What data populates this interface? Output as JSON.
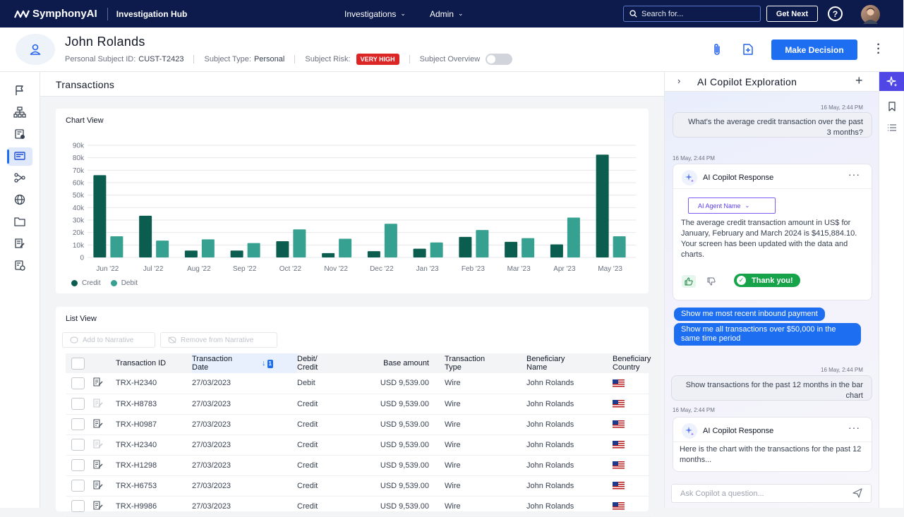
{
  "topbar": {
    "brand": "SymphonyAI",
    "product": "Investigation Hub",
    "menu": [
      {
        "label": "Investigations"
      },
      {
        "label": "Admin"
      }
    ],
    "search_placeholder": "Search for...",
    "get_next": "Get Next",
    "help": "?"
  },
  "subject": {
    "name": "John Rolands",
    "id_label": "Personal Subject ID:",
    "id_value": "CUST-T2423",
    "type_label": "Subject Type:",
    "type_value": "Personal",
    "risk_label": "Subject Risk:",
    "risk_value": "VERY HIGH",
    "overview_label": "Subject Overview",
    "overview_on": false,
    "make_decision": "Make Decision"
  },
  "main": {
    "title": "Transactions",
    "chart_view_title": "Chart View",
    "list_view_title": "List View",
    "add_narrative": "Add to Narrative",
    "remove_narrative": "Remove from Narrative",
    "sort_badge": "1",
    "columns": [
      {
        "label": "Transaction ID"
      },
      {
        "label": "Transaction Date"
      },
      {
        "label": "Debit/ Credit"
      },
      {
        "label": "Base amount"
      },
      {
        "label": "Transaction Type"
      },
      {
        "label": "Beneficiary Name"
      },
      {
        "label": "Beneficiary Country"
      }
    ],
    "rows": [
      {
        "id": "TRX-H2340",
        "date": "27/03/2023",
        "dc": "Debit",
        "amount": "USD 9,539.00",
        "type": "Wire",
        "beneficiary": "John Rolands",
        "note_active": true
      },
      {
        "id": "TRX-H8783",
        "date": "27/03/2023",
        "dc": "Credit",
        "amount": "USD 9,539.00",
        "type": "Wire",
        "beneficiary": "John Rolands",
        "note_active": false
      },
      {
        "id": "TRX-H0987",
        "date": "27/03/2023",
        "dc": "Credit",
        "amount": "USD 9,539.00",
        "type": "Wire",
        "beneficiary": "John Rolands",
        "note_active": true
      },
      {
        "id": "TRX-H2340",
        "date": "27/03/2023",
        "dc": "Credit",
        "amount": "USD 9,539.00",
        "type": "Wire",
        "beneficiary": "John Rolands",
        "note_active": false
      },
      {
        "id": "TRX-H1298",
        "date": "27/03/2023",
        "dc": "Credit",
        "amount": "USD 9,539.00",
        "type": "Wire",
        "beneficiary": "John Rolands",
        "note_active": true
      },
      {
        "id": "TRX-H6753",
        "date": "27/03/2023",
        "dc": "Credit",
        "amount": "USD 9,539.00",
        "type": "Wire",
        "beneficiary": "John Rolands",
        "note_active": true
      },
      {
        "id": "TRX-H9986",
        "date": "27/03/2023",
        "dc": "Credit",
        "amount": "USD 9,539.00",
        "type": "Wire",
        "beneficiary": "John Rolands",
        "note_active": true
      }
    ]
  },
  "chart_data": {
    "type": "bar",
    "categories": [
      "Jun '22",
      "Jul '22",
      "Aug '22",
      "Sep '22",
      "Oct '22",
      "Nov '22",
      "Dec '22",
      "Jan '23",
      "Feb '23",
      "Mar '23",
      "Apr '23",
      "May '23"
    ],
    "series": [
      {
        "name": "Credit",
        "color": "#0b5e4f",
        "values": [
          66000,
          33500,
          5500,
          5500,
          13000,
          3500,
          5000,
          7000,
          16500,
          12500,
          10500,
          82500
        ]
      },
      {
        "name": "Debit",
        "color": "#36a190",
        "values": [
          17000,
          13500,
          14500,
          11500,
          22500,
          15000,
          27000,
          12000,
          22000,
          15500,
          32000,
          17000
        ]
      }
    ],
    "ylim": [
      0,
      90000
    ],
    "yticks": [
      "0",
      "10k",
      "20k",
      "30k",
      "40k",
      "50k",
      "60k",
      "70k",
      "80k",
      "90k"
    ],
    "grid": true,
    "legend_position": "bottom-left"
  },
  "copilot": {
    "title": "AI Copilot Exploration",
    "messages": {
      "q1_time": "16 May, 2:44 PM",
      "q1": "What's the average credit transaction over the past 3 months?",
      "r1_time": "16 May, 2:44 PM",
      "r1_title": "AI Copilot Response",
      "r1_agent": "AI Agent Name",
      "r1_text": "The average credit transaction amount in US$ for January, February and March 2024 is $415,884.10. Your screen has been updated with the data and charts.",
      "thanks": "Thank you!",
      "s1": "Show me most recent inbound payment",
      "s2": "Show me all transactions over $50,000 in the same time period",
      "q2_time": "16 May, 2:44 PM",
      "q2": "Show transactions for the past 12 months in the bar chart",
      "r2_time": "16 May, 2:44 PM",
      "r2_title": "AI Copilot Response",
      "r2_text": "Here is the chart with the transactions for the past 12 months..."
    },
    "ask_placeholder": "Ask Copilot a question..."
  }
}
